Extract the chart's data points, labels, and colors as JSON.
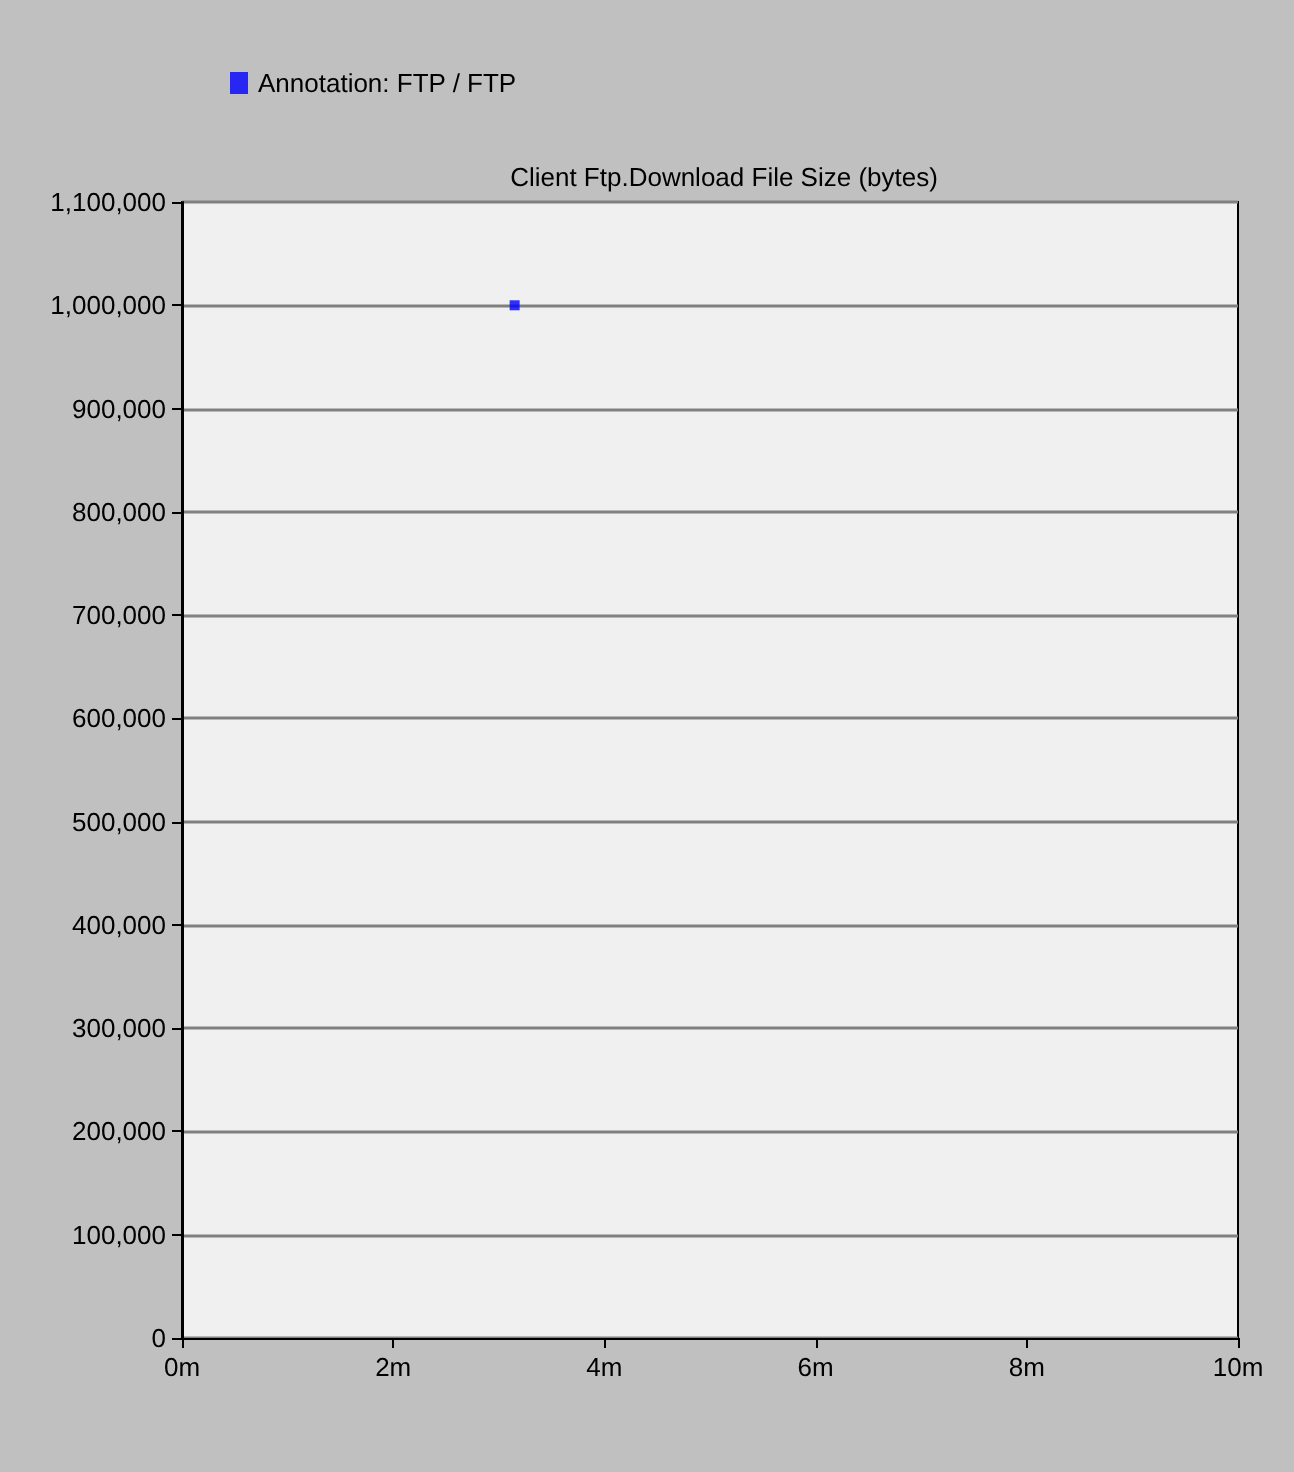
{
  "chart_data": {
    "type": "scatter",
    "title": "Client Ftp.Download File Size (bytes)",
    "series": [
      {
        "name": "Annotation: FTP / FTP",
        "color": "#0000ff",
        "x": [
          3.15
        ],
        "values": [
          1000000
        ]
      }
    ],
    "xlim": [
      0,
      10
    ],
    "xticks": [
      {
        "value": 0,
        "label": "0m"
      },
      {
        "value": 2,
        "label": "2m"
      },
      {
        "value": 4,
        "label": "4m"
      },
      {
        "value": 6,
        "label": "6m"
      },
      {
        "value": 8,
        "label": "8m"
      },
      {
        "value": 10,
        "label": "10m"
      }
    ],
    "ylim": [
      0,
      1100000
    ],
    "yticks": [
      0,
      {
        "value": 100000,
        "label": "100,000"
      },
      {
        "value": 200000,
        "label": "200,000"
      },
      {
        "value": 300000,
        "label": "300,000"
      },
      {
        "value": 400000,
        "label": "400,000"
      },
      {
        "value": 500000,
        "label": "500,000"
      },
      {
        "value": 600000,
        "label": "600,000"
      },
      {
        "value": 700000,
        "label": "700,000"
      },
      {
        "value": 800000,
        "label": "800,000"
      },
      {
        "value": 900000,
        "label": "900,000"
      },
      {
        "value": 1000000,
        "label": "1,000,000"
      },
      {
        "value": 1100000,
        "label": "1,100,000"
      }
    ],
    "grid": "y",
    "legend": "top left",
    "marker": "square"
  }
}
